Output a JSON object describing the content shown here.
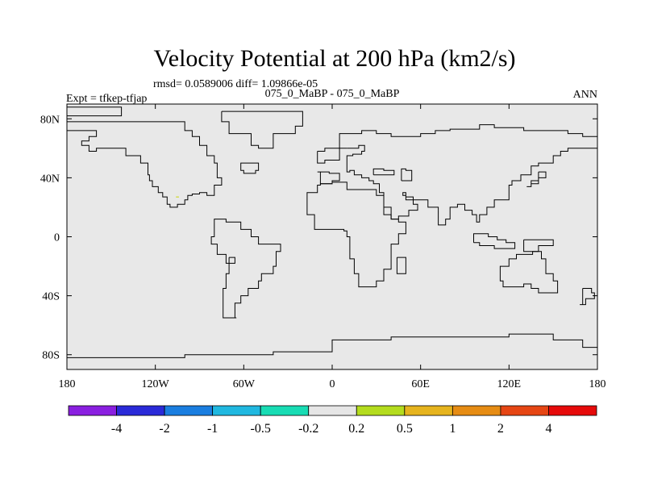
{
  "title": "Velocity Potential at 200 hPa (km2/s)",
  "stats_line": "rmsd= 0.0589006 diff= 1.09866e-05",
  "experiment_label": "Expt = tfkep-tfjap",
  "case_label": "075_0_MaBP - 075_0_MaBP",
  "season_label": "ANN",
  "colors": {
    "plot_background": "#e8e8e8",
    "coastline": "#000000",
    "speck": "#c8d400"
  },
  "chart_data": {
    "type": "heatmap",
    "projection": "cylindrical equidistant",
    "field_value_everywhere_bin": "-0.2 to 0.2",
    "xlim": [
      -180,
      180
    ],
    "ylim": [
      -90,
      90
    ],
    "x_ticks": [
      {
        "value": -180,
        "label": "180"
      },
      {
        "value": -120,
        "label": "120W"
      },
      {
        "value": -60,
        "label": "60W"
      },
      {
        "value": 0,
        "label": "0"
      },
      {
        "value": 60,
        "label": "60E"
      },
      {
        "value": 120,
        "label": "120E"
      },
      {
        "value": 180,
        "label": "180"
      }
    ],
    "y_ticks": [
      {
        "value": 80,
        "label": "80N"
      },
      {
        "value": 40,
        "label": "40N"
      },
      {
        "value": 0,
        "label": "0"
      },
      {
        "value": -40,
        "label": "40S"
      },
      {
        "value": -80,
        "label": "80S"
      }
    ],
    "colorbar": {
      "colors": [
        "#8a1fe0",
        "#2a2ad8",
        "#1a7ee0",
        "#20b8e0",
        "#18dcb4",
        "#e6e6e6",
        "#b4dc1e",
        "#e6b41e",
        "#e68c14",
        "#e64614",
        "#e60a0a"
      ],
      "labels": [
        "-4",
        "-2",
        "-1",
        "-0.5",
        "-0.2",
        "0.2",
        "0.5",
        "1",
        "2",
        "4"
      ]
    },
    "coastlines": [
      [
        [
          -180,
          82
        ],
        [
          -143,
          82
        ],
        [
          -143,
          88
        ],
        [
          -180,
          88
        ]
      ],
      [
        [
          -180,
          78
        ],
        [
          -100,
          78
        ],
        [
          -100,
          72
        ],
        [
          -95,
          72
        ],
        [
          -95,
          68
        ],
        [
          -90,
          68
        ],
        [
          -90,
          62
        ],
        [
          -88,
          62
        ],
        [
          -85,
          55
        ],
        [
          -80,
          50
        ],
        [
          -78,
          40
        ],
        [
          -75,
          35
        ],
        [
          -80,
          28
        ],
        [
          -85,
          30
        ],
        [
          -90,
          29
        ],
        [
          -95,
          28
        ],
        [
          -98,
          25
        ],
        [
          -100,
          22
        ],
        [
          -105,
          20
        ],
        [
          -110,
          22
        ],
        [
          -112,
          27
        ],
        [
          -115,
          30
        ],
        [
          -118,
          34
        ],
        [
          -122,
          38
        ],
        [
          -124,
          42
        ],
        [
          -125,
          50
        ],
        [
          -130,
          55
        ],
        [
          -140,
          60
        ],
        [
          -150,
          60
        ],
        [
          -160,
          58
        ],
        [
          -165,
          62
        ],
        [
          -170,
          65
        ],
        [
          -165,
          68
        ],
        [
          -160,
          72
        ],
        [
          -180,
          72
        ]
      ],
      [
        [
          -75,
          85
        ],
        [
          -20,
          85
        ],
        [
          -20,
          75
        ],
        [
          -25,
          70
        ],
        [
          -40,
          60
        ],
        [
          -50,
          62
        ],
        [
          -55,
          70
        ],
        [
          -70,
          78
        ],
        [
          -75,
          85
        ]
      ],
      [
        [
          -55,
          50
        ],
        [
          -50,
          45
        ],
        [
          -52,
          43
        ],
        [
          -60,
          45
        ],
        [
          -62,
          50
        ],
        [
          -55,
          50
        ]
      ],
      [
        [
          -80,
          10
        ],
        [
          -80,
          0
        ],
        [
          -82,
          -5
        ],
        [
          -78,
          -12
        ],
        [
          -72,
          -18
        ],
        [
          -70,
          -25
        ],
        [
          -72,
          -35
        ],
        [
          -74,
          -45
        ],
        [
          -74,
          -55
        ],
        [
          -65,
          -55
        ],
        [
          -66,
          -45
        ],
        [
          -62,
          -40
        ],
        [
          -57,
          -35
        ],
        [
          -50,
          -30
        ],
        [
          -48,
          -25
        ],
        [
          -40,
          -20
        ],
        [
          -38,
          -10
        ],
        [
          -35,
          -5
        ],
        [
          -50,
          0
        ],
        [
          -55,
          5
        ],
        [
          -62,
          10
        ],
        [
          -72,
          12
        ],
        [
          -80,
          10
        ]
      ],
      [
        [
          -70,
          -14
        ],
        [
          -66,
          -14
        ],
        [
          -66,
          -18
        ],
        [
          -70,
          -18
        ],
        [
          -70,
          -14
        ]
      ],
      [
        [
          -17,
          20
        ],
        [
          -17,
          15
        ],
        [
          -12,
          5
        ],
        [
          0,
          5
        ],
        [
          8,
          4
        ],
        [
          10,
          0
        ],
        [
          12,
          -5
        ],
        [
          12,
          -15
        ],
        [
          15,
          -25
        ],
        [
          18,
          -34
        ],
        [
          25,
          -34
        ],
        [
          30,
          -30
        ],
        [
          35,
          -22
        ],
        [
          40,
          -15
        ],
        [
          40,
          -5
        ],
        [
          45,
          2
        ],
        [
          50,
          10
        ],
        [
          45,
          12
        ],
        [
          40,
          15
        ],
        [
          35,
          28
        ],
        [
          30,
          32
        ],
        [
          20,
          32
        ],
        [
          10,
          37
        ],
        [
          0,
          36
        ],
        [
          -8,
          35
        ],
        [
          -10,
          30
        ],
        [
          -17,
          20
        ]
      ],
      [
        [
          44,
          -14
        ],
        [
          50,
          -14
        ],
        [
          50,
          -25
        ],
        [
          44,
          -25
        ],
        [
          44,
          -14
        ]
      ],
      [
        [
          -10,
          58
        ],
        [
          -5,
          60
        ],
        [
          5,
          60
        ],
        [
          5,
          52
        ],
        [
          -5,
          50
        ],
        [
          -10,
          52
        ],
        [
          -10,
          58
        ]
      ],
      [
        [
          -10,
          44
        ],
        [
          -8,
          36
        ],
        [
          0,
          38
        ],
        [
          5,
          43
        ],
        [
          -2,
          44
        ],
        [
          -10,
          44
        ]
      ],
      [
        [
          10,
          60
        ],
        [
          5,
          60
        ],
        [
          5,
          70
        ],
        [
          20,
          72
        ],
        [
          30,
          70
        ],
        [
          40,
          68
        ],
        [
          60,
          70
        ],
        [
          70,
          72
        ],
        [
          80,
          73
        ],
        [
          100,
          76
        ],
        [
          110,
          74
        ],
        [
          130,
          72
        ],
        [
          150,
          72
        ],
        [
          160,
          70
        ],
        [
          170,
          68
        ],
        [
          180,
          67
        ]
      ],
      [
        [
          180,
          60
        ],
        [
          170,
          60
        ],
        [
          160,
          58
        ],
        [
          155,
          55
        ],
        [
          150,
          50
        ],
        [
          140,
          48
        ],
        [
          135,
          42
        ],
        [
          128,
          38
        ],
        [
          122,
          35
        ],
        [
          120,
          25
        ],
        [
          110,
          20
        ],
        [
          105,
          15
        ],
        [
          100,
          10
        ],
        [
          98,
          15
        ],
        [
          95,
          18
        ],
        [
          90,
          22
        ],
        [
          85,
          20
        ],
        [
          80,
          12
        ],
        [
          77,
          8
        ],
        [
          72,
          20
        ],
        [
          65,
          25
        ],
        [
          58,
          25
        ],
        [
          55,
          27
        ],
        [
          50,
          30
        ],
        [
          48,
          28
        ],
        [
          50,
          25
        ],
        [
          55,
          22
        ],
        [
          58,
          18
        ],
        [
          52,
          14
        ],
        [
          45,
          12
        ],
        [
          40,
          20
        ],
        [
          35,
          30
        ],
        [
          32,
          36
        ],
        [
          28,
          38
        ],
        [
          25,
          40
        ],
        [
          20,
          42
        ],
        [
          15,
          45
        ],
        [
          12,
          44
        ],
        [
          10,
          55
        ],
        [
          14,
          56
        ],
        [
          20,
          58
        ],
        [
          22,
          62
        ],
        [
          18,
          60
        ],
        [
          10,
          60
        ]
      ],
      [
        [
          28,
          42
        ],
        [
          40,
          42
        ],
        [
          42,
          45
        ],
        [
          35,
          46
        ],
        [
          28,
          45
        ],
        [
          28,
          42
        ]
      ],
      [
        [
          47,
          38
        ],
        [
          52,
          38
        ],
        [
          54,
          45
        ],
        [
          50,
          46
        ],
        [
          47,
          42
        ],
        [
          47,
          38
        ]
      ],
      [
        [
          96,
          -4
        ],
        [
          100,
          -6
        ],
        [
          106,
          -6
        ],
        [
          110,
          -8
        ],
        [
          118,
          -8
        ],
        [
          124,
          -8
        ],
        [
          124,
          -4
        ],
        [
          118,
          -2
        ],
        [
          112,
          0
        ],
        [
          106,
          2
        ],
        [
          100,
          2
        ],
        [
          96,
          -4
        ]
      ],
      [
        [
          130,
          -2
        ],
        [
          140,
          -2
        ],
        [
          150,
          -6
        ],
        [
          140,
          -10
        ],
        [
          130,
          -6
        ],
        [
          130,
          -2
        ]
      ],
      [
        [
          140,
          44
        ],
        [
          144,
          44
        ],
        [
          145,
          40
        ],
        [
          140,
          36
        ],
        [
          135,
          34
        ],
        [
          132,
          34
        ],
        [
          135,
          38
        ],
        [
          140,
          44
        ]
      ],
      [
        [
          114,
          -22
        ],
        [
          114,
          -30
        ],
        [
          116,
          -34
        ],
        [
          120,
          -34
        ],
        [
          130,
          -32
        ],
        [
          135,
          -35
        ],
        [
          140,
          -38
        ],
        [
          150,
          -38
        ],
        [
          153,
          -30
        ],
        [
          150,
          -25
        ],
        [
          145,
          -15
        ],
        [
          142,
          -10
        ],
        [
          136,
          -12
        ],
        [
          130,
          -12
        ],
        [
          125,
          -15
        ],
        [
          120,
          -20
        ],
        [
          114,
          -22
        ]
      ],
      [
        [
          170,
          -35
        ],
        [
          176,
          -38
        ],
        [
          178,
          -42
        ],
        [
          172,
          -46
        ],
        [
          168,
          -46
        ],
        [
          170,
          -40
        ],
        [
          170,
          -35
        ]
      ],
      [
        [
          -180,
          -82
        ],
        [
          -120,
          -82
        ],
        [
          -100,
          -80
        ],
        [
          -60,
          -80
        ],
        [
          -40,
          -78
        ],
        [
          0,
          -70
        ],
        [
          40,
          -68
        ],
        [
          80,
          -68
        ],
        [
          120,
          -66
        ],
        [
          150,
          -70
        ],
        [
          170,
          -75
        ],
        [
          180,
          -78
        ]
      ]
    ]
  }
}
